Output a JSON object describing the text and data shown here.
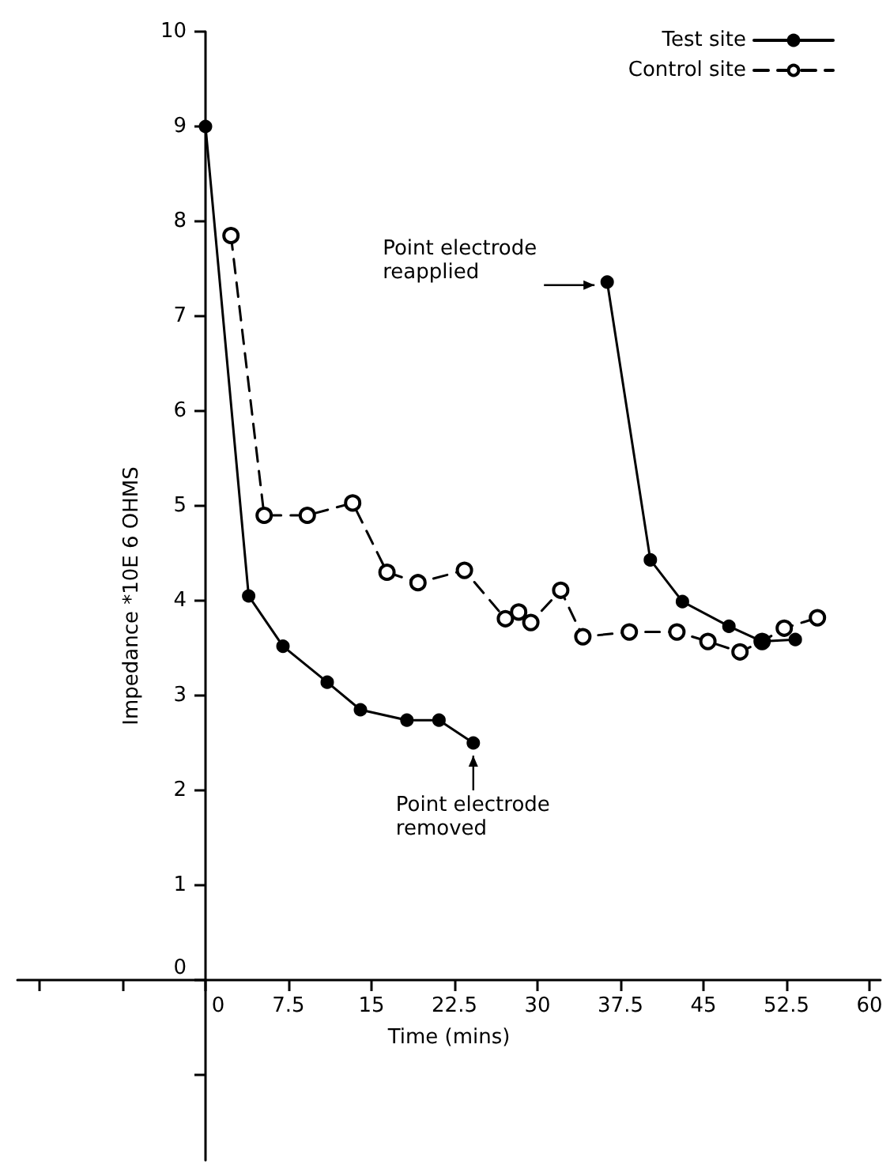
{
  "chart_data": {
    "type": "line",
    "xlabel": "Time (mins)",
    "ylabel": "Impedance *10E 6 OHMS",
    "xlim": [
      -17,
      61
    ],
    "xticks": [
      {
        "value": -15,
        "label": null
      },
      {
        "value": -7.5,
        "label": null
      },
      0,
      7.5,
      15,
      22.5,
      30,
      37.5,
      45,
      52.5,
      60
    ],
    "ylim": [
      -1.9,
      10
    ],
    "yticks": [
      {
        "value": -1,
        "label": null
      },
      0,
      1,
      2,
      3,
      4,
      5,
      6,
      7,
      8,
      9,
      10
    ],
    "grid": false,
    "legend": "top right",
    "marker": "circle",
    "series": [
      {
        "name": "Test site",
        "color": "#000000",
        "line_style": "solid",
        "x": [
          0,
          3.9,
          7.0,
          11.0,
          14.0,
          18.2,
          21.1,
          24.2,
          null,
          36.3,
          40.2,
          43.1,
          47.3,
          50.3,
          53.3
        ],
        "values": [
          9,
          4.05,
          3.52,
          3.14,
          2.85,
          2.74,
          2.74,
          2.5,
          null,
          7.36,
          4.43,
          3.99,
          3.73,
          3.57,
          3.59
        ]
      },
      {
        "name": "Control site",
        "color": "#000000",
        "line_style": "dashed",
        "x": [
          2.3,
          5.3,
          9.2,
          13.3,
          16.4,
          19.2,
          23.4,
          27.1,
          28.3,
          29.4,
          32.1,
          34.1,
          38.3,
          42.6,
          45.4,
          48.3,
          50.3,
          52.3,
          55.3
        ],
        "values": [
          7.85,
          4.9,
          4.9,
          5.03,
          4.3,
          4.19,
          4.32,
          3.81,
          3.88,
          3.77,
          4.11,
          3.62,
          3.67,
          3.67,
          3.57,
          3.46,
          3.57,
          3.71,
          3.82
        ]
      }
    ],
    "annotations": [
      {
        "text": "Point electrode reapplied",
        "x": 36.3,
        "y": 7.36
      },
      {
        "text": "Point electrode removed",
        "x": 24.2,
        "y": 2.5
      }
    ]
  }
}
